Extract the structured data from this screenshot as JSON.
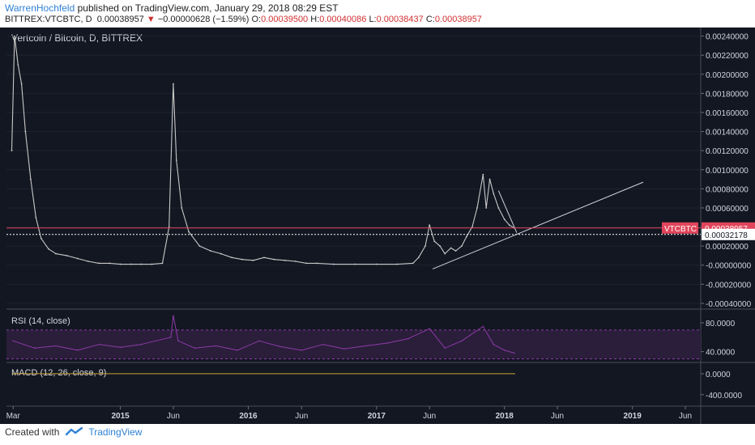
{
  "header": {
    "author": "WarrenHochfeld",
    "published_text": "published on TradingView.com, January 29, 2018 08:29 EST",
    "symbol": "BITTREX:VTCBTC, D",
    "last": "0.00038957",
    "change_arrow": "▼",
    "change": "−0.00000628 (−1.59%)",
    "o_label": "O:",
    "o": "0.00039500",
    "h_label": "H:",
    "h": "0.00040086",
    "l_label": "L:",
    "l": "0.00038437",
    "c_label": "C:",
    "c": "0.00038957"
  },
  "footer": {
    "created_with": "Created with",
    "brand": "TradingView",
    "logo_icon": "tradingview-logo-icon"
  },
  "chart_data": {
    "type": "line",
    "title": "Vertcoin / Bitcoin, D, BITTREX",
    "colors": {
      "background": "#131722",
      "price": "#c8c8c8",
      "rsi": "#8e3aa8",
      "rsi_band": "#2a1e3a",
      "price_line": "#e0455b",
      "macd": "#c8a030"
    },
    "x_ticks": [
      "Mar",
      "2015",
      "Jun",
      "2016",
      "Jun",
      "2017",
      "Jun",
      "2018",
      "Jun",
      "2019",
      "Jun"
    ],
    "x_tick_dates": [
      "2014-03-01",
      "2015-01-01",
      "2015-06-01",
      "2016-01-01",
      "2016-06-01",
      "2017-01-01",
      "2017-06-01",
      "2018-01-01",
      "2018-06-01",
      "2019-01-01",
      "2019-06-01"
    ],
    "bold_ticks": [
      "2015",
      "2016",
      "2017",
      "2018",
      "2019"
    ],
    "xlim": [
      "2014-02-10",
      "2019-07-15"
    ],
    "price_pane": {
      "ylim": [
        -0.00046,
        0.00249
      ],
      "y_ticks": [
        "0.00240000",
        "0.00220000",
        "0.00200000",
        "0.00180000",
        "0.00160000",
        "0.00140000",
        "0.00120000",
        "0.00100000",
        "0.00080000",
        "0.00060000",
        "0.00040000",
        "0.00020000",
        "-0.00000000",
        "-0.00020000",
        "-0.00040000"
      ],
      "y_tick_values": [
        0.0024,
        0.0022,
        0.002,
        0.0018,
        0.0016,
        0.0014,
        0.0012,
        0.001,
        0.0008,
        0.0006,
        0.0004,
        0.0002,
        0,
        -0.0002,
        -0.0004
      ],
      "last_price_label": "VTCBTC",
      "last_price_value": "0.00038957",
      "last_price": 0.00038957,
      "horizontal_line_label": "0.00032178",
      "horizontal_line": 0.00032178,
      "series": [
        {
          "x": "2014-02-25",
          "y": 0.0012
        },
        {
          "x": "2014-03-05",
          "y": 0.0024
        },
        {
          "x": "2014-03-15",
          "y": 0.0021
        },
        {
          "x": "2014-03-25",
          "y": 0.0019
        },
        {
          "x": "2014-04-05",
          "y": 0.0014
        },
        {
          "x": "2014-04-20",
          "y": 0.0009
        },
        {
          "x": "2014-05-05",
          "y": 0.0005
        },
        {
          "x": "2014-05-20",
          "y": 0.00028
        },
        {
          "x": "2014-06-10",
          "y": 0.00017
        },
        {
          "x": "2014-07-01",
          "y": 0.00012
        },
        {
          "x": "2014-08-01",
          "y": 0.0001
        },
        {
          "x": "2014-09-01",
          "y": 7e-05
        },
        {
          "x": "2014-10-01",
          "y": 4e-05
        },
        {
          "x": "2014-11-01",
          "y": 2e-05
        },
        {
          "x": "2014-12-01",
          "y": 2e-05
        },
        {
          "x": "2015-01-01",
          "y": 1e-05
        },
        {
          "x": "2015-02-01",
          "y": 1e-05
        },
        {
          "x": "2015-03-01",
          "y": 1e-05
        },
        {
          "x": "2015-04-01",
          "y": 1e-05
        },
        {
          "x": "2015-05-01",
          "y": 2e-05
        },
        {
          "x": "2015-05-20",
          "y": 0.0004
        },
        {
          "x": "2015-06-01",
          "y": 0.0019
        },
        {
          "x": "2015-06-10",
          "y": 0.0011
        },
        {
          "x": "2015-06-25",
          "y": 0.0006
        },
        {
          "x": "2015-07-15",
          "y": 0.00035
        },
        {
          "x": "2015-08-15",
          "y": 0.0002
        },
        {
          "x": "2015-09-15",
          "y": 0.00015
        },
        {
          "x": "2015-10-15",
          "y": 0.00012
        },
        {
          "x": "2015-11-15",
          "y": 8e-05
        },
        {
          "x": "2015-12-15",
          "y": 6e-05
        },
        {
          "x": "2016-01-15",
          "y": 5e-05
        },
        {
          "x": "2016-02-15",
          "y": 8e-05
        },
        {
          "x": "2016-03-15",
          "y": 6e-05
        },
        {
          "x": "2016-04-15",
          "y": 5e-05
        },
        {
          "x": "2016-05-15",
          "y": 4e-05
        },
        {
          "x": "2016-06-15",
          "y": 2e-05
        },
        {
          "x": "2016-07-15",
          "y": 2e-05
        },
        {
          "x": "2016-09-01",
          "y": 1e-05
        },
        {
          "x": "2016-11-01",
          "y": 1e-05
        },
        {
          "x": "2017-01-01",
          "y": 1e-05
        },
        {
          "x": "2017-03-01",
          "y": 1e-05
        },
        {
          "x": "2017-04-15",
          "y": 2e-05
        },
        {
          "x": "2017-05-01",
          "y": 8e-05
        },
        {
          "x": "2017-05-20",
          "y": 0.0002
        },
        {
          "x": "2017-06-01",
          "y": 0.00042
        },
        {
          "x": "2017-06-15",
          "y": 0.00025
        },
        {
          "x": "2017-07-01",
          "y": 0.0002
        },
        {
          "x": "2017-07-15",
          "y": 0.00012
        },
        {
          "x": "2017-08-01",
          "y": 0.00018
        },
        {
          "x": "2017-08-15",
          "y": 0.00015
        },
        {
          "x": "2017-09-01",
          "y": 0.0002
        },
        {
          "x": "2017-09-15",
          "y": 0.0003
        },
        {
          "x": "2017-10-01",
          "y": 0.0004
        },
        {
          "x": "2017-10-15",
          "y": 0.0006
        },
        {
          "x": "2017-11-01",
          "y": 0.00095
        },
        {
          "x": "2017-11-10",
          "y": 0.0006
        },
        {
          "x": "2017-11-20",
          "y": 0.0009
        },
        {
          "x": "2017-12-01",
          "y": 0.00075
        },
        {
          "x": "2017-12-15",
          "y": 0.0006
        },
        {
          "x": "2018-01-01",
          "y": 0.00048
        },
        {
          "x": "2018-01-15",
          "y": 0.00042
        },
        {
          "x": "2018-01-29",
          "y": 0.00038957
        }
      ],
      "trendline": {
        "x": [
          "2017-06-10",
          "2019-02-01"
        ],
        "y": [
          -4e-05,
          0.00087
        ]
      },
      "triangle_line": {
        "x": [
          "2017-12-15",
          "2018-02-05"
        ],
        "y": [
          0.00078,
          0.00034
        ]
      }
    },
    "rsi_pane": {
      "title": "RSI (14, close)",
      "ylim": [
        25,
        98
      ],
      "y_ticks": [
        "80.0000",
        "40.0000"
      ],
      "y_tick_values": [
        80,
        40
      ],
      "band": [
        30,
        70
      ],
      "series": [
        {
          "x": "2014-03-01",
          "y": 55
        },
        {
          "x": "2014-05-01",
          "y": 45
        },
        {
          "x": "2014-07-01",
          "y": 48
        },
        {
          "x": "2014-09-01",
          "y": 42
        },
        {
          "x": "2014-11-01",
          "y": 50
        },
        {
          "x": "2015-01-01",
          "y": 46
        },
        {
          "x": "2015-03-01",
          "y": 50
        },
        {
          "x": "2015-05-25",
          "y": 60
        },
        {
          "x": "2015-06-01",
          "y": 90
        },
        {
          "x": "2015-06-15",
          "y": 55
        },
        {
          "x": "2015-08-01",
          "y": 45
        },
        {
          "x": "2015-10-01",
          "y": 48
        },
        {
          "x": "2015-12-01",
          "y": 42
        },
        {
          "x": "2016-02-01",
          "y": 55
        },
        {
          "x": "2016-04-01",
          "y": 47
        },
        {
          "x": "2016-06-01",
          "y": 42
        },
        {
          "x": "2016-08-01",
          "y": 50
        },
        {
          "x": "2016-10-01",
          "y": 44
        },
        {
          "x": "2016-12-01",
          "y": 48
        },
        {
          "x": "2017-02-01",
          "y": 52
        },
        {
          "x": "2017-04-01",
          "y": 58
        },
        {
          "x": "2017-06-01",
          "y": 72
        },
        {
          "x": "2017-07-15",
          "y": 45
        },
        {
          "x": "2017-09-01",
          "y": 55
        },
        {
          "x": "2017-11-01",
          "y": 75
        },
        {
          "x": "2017-12-01",
          "y": 50
        },
        {
          "x": "2018-01-01",
          "y": 42
        },
        {
          "x": "2018-01-29",
          "y": 38
        }
      ]
    },
    "macd_pane": {
      "title": "MACD (12, 26, close, 9)",
      "ylim": [
        -620,
        200
      ],
      "y_ticks": [
        "0.0000",
        "-400.0000"
      ],
      "y_tick_values": [
        0,
        -400
      ],
      "series": [
        {
          "x": "2014-03-01",
          "y": 0
        },
        {
          "x": "2018-01-29",
          "y": 0
        }
      ]
    }
  }
}
